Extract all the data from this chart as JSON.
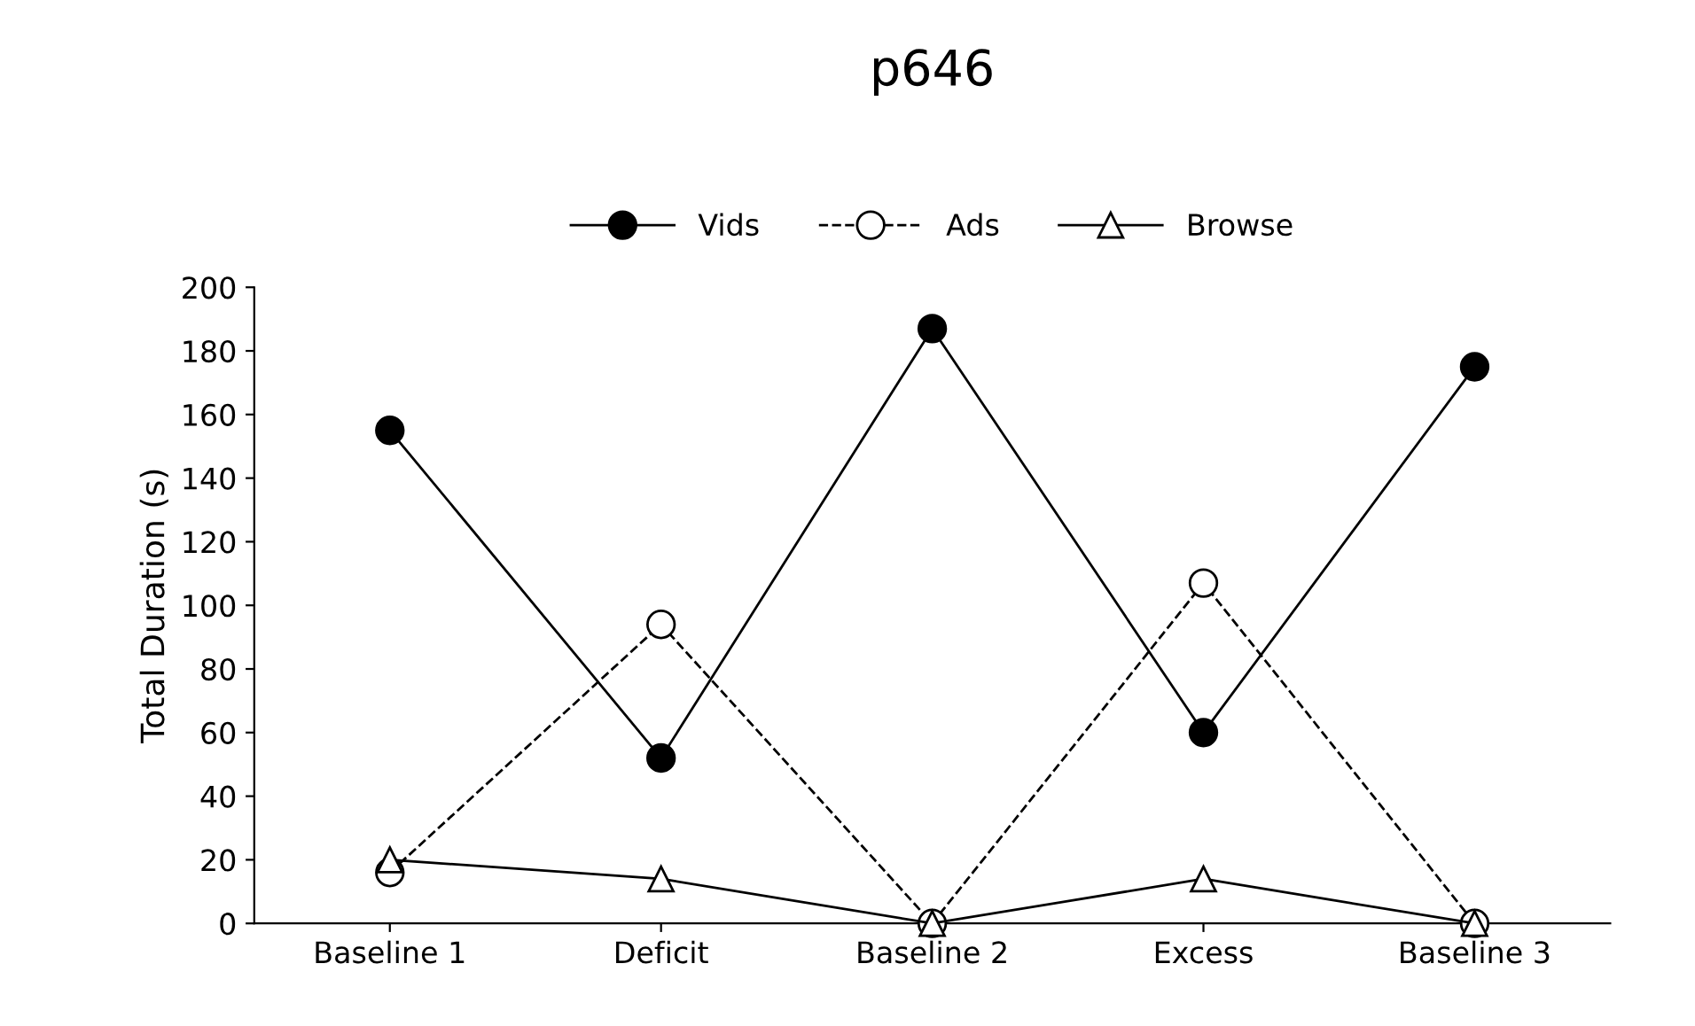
{
  "chart_data": {
    "type": "line",
    "title": "p646",
    "ylabel": "Total Duration (s)",
    "categories": [
      "Baseline 1",
      "Deficit",
      "Baseline 2",
      "Excess",
      "Baseline 3"
    ],
    "series": [
      {
        "name": "Vids",
        "color": "#000000",
        "values": [
          155,
          52,
          187,
          60,
          175
        ],
        "marker": "circle",
        "line_style": "solid"
      },
      {
        "name": "Ads",
        "color": "#000000",
        "values": [
          16,
          94,
          0,
          107,
          0
        ],
        "marker": "circle",
        "line_style": "dashed"
      },
      {
        "name": "Browse",
        "color": "#000000",
        "values": [
          20,
          14,
          0,
          14,
          0
        ],
        "marker": "triangle",
        "line_style": "solid"
      }
    ],
    "ylim": [
      0,
      200
    ],
    "yticks": [
      0,
      20,
      40,
      60,
      80,
      100,
      120,
      140,
      160,
      180,
      200
    ],
    "grid": false,
    "legend": "top"
  }
}
